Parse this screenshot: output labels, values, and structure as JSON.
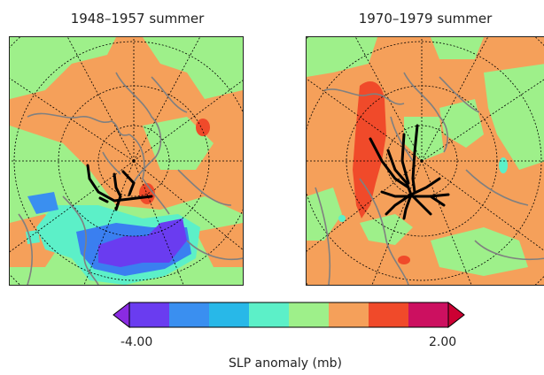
{
  "panels": [
    {
      "title": "1948–1957 summer"
    },
    {
      "title": "1970–1979 summer"
    }
  ],
  "legend": {
    "min_label": "-4.00",
    "max_label": "2.00",
    "title": "SLP anomaly (mb)",
    "colors": [
      "#6a3cf0",
      "#3a8ff0",
      "#28b8e8",
      "#5cf0c8",
      "#9ef08a",
      "#f5a05a",
      "#f04a2a",
      "#cc1060"
    ],
    "under_color": "#8a2be2",
    "over_color": "#cc0033"
  },
  "map_colors": {
    "background": "#f5a05a",
    "light_green": "#9ef08a",
    "cyan": "#5cf0c8",
    "sky": "#28b8e8",
    "blue": "#3a7ff0",
    "purple": "#6a3cf0",
    "red": "#f04a2a",
    "coast": "#808080"
  }
}
